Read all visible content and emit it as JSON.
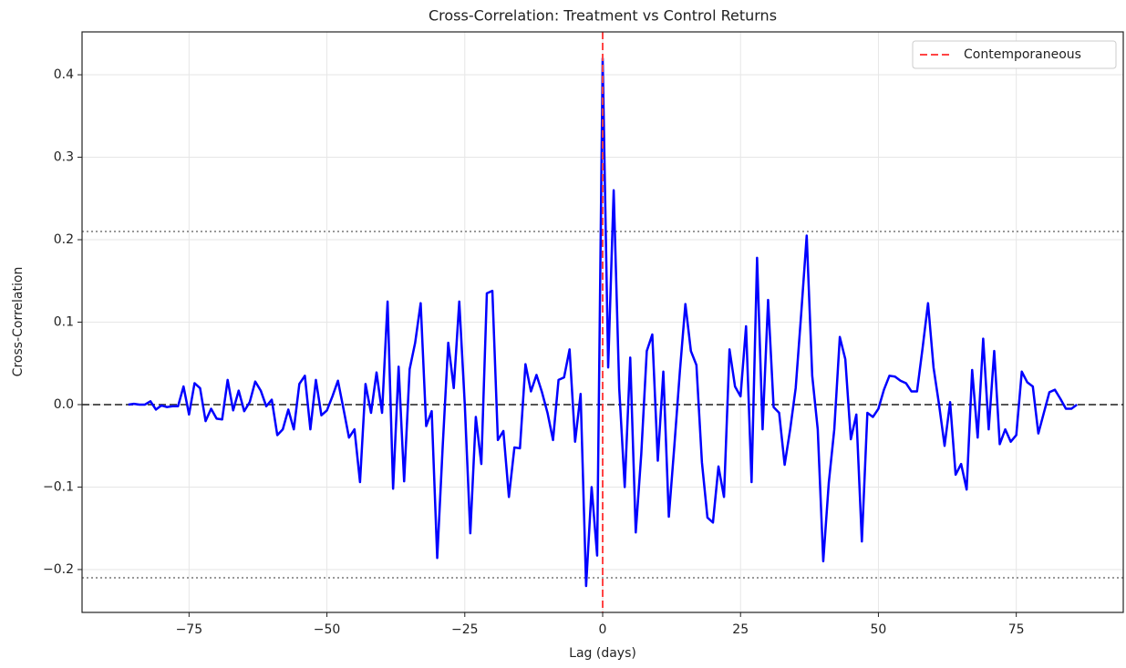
{
  "chart_data": {
    "type": "line",
    "title": "Cross-Correlation: Treatment vs Control Returns",
    "xlabel": "Lag (days)",
    "ylabel": "Cross-Correlation",
    "x": [
      -86,
      -85,
      -84,
      -83,
      -82,
      -81,
      -80,
      -79,
      -78,
      -77,
      -76,
      -75,
      -74,
      -73,
      -72,
      -71,
      -70,
      -69,
      -68,
      -67,
      -66,
      -65,
      -64,
      -63,
      -62,
      -61,
      -60,
      -59,
      -58,
      -57,
      -56,
      -55,
      -54,
      -53,
      -52,
      -51,
      -50,
      -49,
      -48,
      -47,
      -46,
      -45,
      -44,
      -43,
      -42,
      -41,
      -40,
      -39,
      -38,
      -37,
      -36,
      -35,
      -34,
      -33,
      -32,
      -31,
      -30,
      -29,
      -28,
      -27,
      -26,
      -25,
      -24,
      -23,
      -22,
      -21,
      -20,
      -19,
      -18,
      -17,
      -16,
      -15,
      -14,
      -13,
      -12,
      -11,
      -10,
      -9,
      -8,
      -7,
      -6,
      -5,
      -4,
      -3,
      -2,
      -1,
      0,
      1,
      2,
      3,
      4,
      5,
      6,
      7,
      8,
      9,
      10,
      11,
      12,
      13,
      14,
      15,
      16,
      17,
      18,
      19,
      20,
      21,
      22,
      23,
      24,
      25,
      26,
      27,
      28,
      29,
      30,
      31,
      32,
      33,
      34,
      35,
      36,
      37,
      38,
      39,
      40,
      41,
      42,
      43,
      44,
      45,
      46,
      47,
      48,
      49,
      50,
      51,
      52,
      53,
      54,
      55,
      56,
      57,
      58,
      59,
      60,
      61,
      62,
      63,
      64,
      65,
      66,
      67,
      68,
      69,
      70,
      71,
      72,
      73,
      74,
      75,
      76,
      77,
      78,
      79,
      80,
      81,
      82,
      83,
      84,
      85,
      86
    ],
    "values": [
      0.0,
      0.001,
      0.0,
      0.0,
      0.004,
      -0.006,
      -0.001,
      -0.003,
      -0.002,
      -0.002,
      0.022,
      -0.012,
      0.026,
      0.02,
      -0.02,
      -0.005,
      -0.017,
      -0.018,
      0.03,
      -0.007,
      0.017,
      -0.008,
      0.003,
      0.028,
      0.017,
      -0.002,
      0.006,
      -0.037,
      -0.03,
      -0.006,
      -0.03,
      0.025,
      0.035,
      -0.03,
      0.03,
      -0.013,
      -0.007,
      0.01,
      0.029,
      -0.005,
      -0.04,
      -0.03,
      -0.094,
      0.025,
      -0.01,
      0.039,
      -0.01,
      0.125,
      -0.102,
      0.046,
      -0.093,
      0.043,
      0.075,
      0.123,
      -0.026,
      -0.008,
      -0.186,
      -0.05,
      0.075,
      0.02,
      0.125,
      0.0,
      -0.156,
      -0.015,
      -0.072,
      0.135,
      0.138,
      -0.043,
      -0.032,
      -0.112,
      -0.052,
      -0.053,
      0.049,
      0.016,
      0.036,
      0.015,
      -0.01,
      -0.043,
      0.03,
      0.033,
      0.067,
      -0.045,
      0.013,
      -0.22,
      -0.1,
      -0.183,
      0.42,
      0.045,
      0.26,
      0.02,
      -0.1,
      0.057,
      -0.155,
      -0.06,
      0.065,
      0.085,
      -0.068,
      0.04,
      -0.136,
      -0.05,
      0.04,
      0.122,
      0.065,
      0.048,
      -0.07,
      -0.137,
      -0.143,
      -0.075,
      -0.112,
      0.067,
      0.022,
      0.01,
      0.095,
      -0.094,
      0.178,
      -0.03,
      0.127,
      -0.003,
      -0.01,
      -0.073,
      -0.03,
      0.02,
      0.11,
      0.205,
      0.035,
      -0.03,
      -0.19,
      -0.095,
      -0.03,
      0.082,
      0.055,
      -0.042,
      -0.012,
      -0.166,
      -0.01,
      -0.015,
      -0.005,
      0.018,
      0.035,
      0.034,
      0.029,
      0.026,
      0.016,
      0.016,
      0.068,
      0.123,
      0.045,
      0.0,
      -0.05,
      0.003,
      -0.085,
      -0.072,
      -0.103,
      0.042,
      -0.04,
      0.08,
      -0.03,
      0.065,
      -0.048,
      -0.03,
      -0.045,
      -0.037,
      0.04,
      0.027,
      0.022,
      -0.035,
      -0.01,
      0.015,
      0.018,
      0.007,
      -0.005,
      -0.005,
      0.0
    ],
    "color": "#0000ff",
    "xlim": [
      -94.4,
      94.4
    ],
    "ylim": [
      -0.252,
      0.452
    ],
    "xticks": [
      {
        "value": -75,
        "label": "−75"
      },
      {
        "value": -50,
        "label": "−50"
      },
      {
        "value": -25,
        "label": "−25"
      },
      0,
      25,
      50,
      75
    ],
    "yticks": [
      {
        "value": -0.2,
        "label": "−0.2"
      },
      {
        "value": -0.1,
        "label": "−0.1"
      },
      {
        "value": 0,
        "label": "0.0"
      },
      0.1,
      0.2,
      0.3,
      0.4
    ],
    "grid": true,
    "hlines": [
      {
        "y": 0,
        "color": "#555555",
        "style": "dashed"
      },
      {
        "y": 0.21,
        "color": "#999999",
        "style": "dotted"
      },
      {
        "y": -0.21,
        "color": "#999999",
        "style": "dotted"
      }
    ],
    "vlines": [
      {
        "x": 0,
        "name": "Contemporaneous",
        "color": "#ff4444",
        "style": "dashed"
      }
    ],
    "legend": "upper right"
  }
}
